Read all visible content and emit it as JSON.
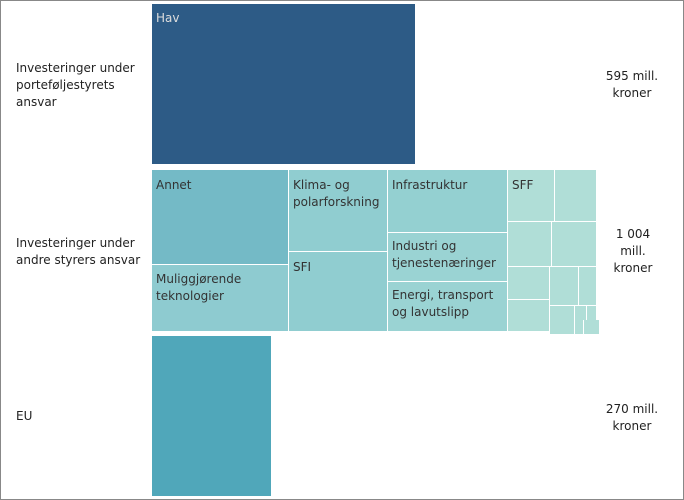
{
  "chart_data": {
    "type": "treemap",
    "rows": [
      {
        "label": "Investeringer under porteføljestyrets ansvar",
        "total": "595 mill. kroner",
        "color": "#2d5b86",
        "cells": [
          "Hav"
        ]
      },
      {
        "label": "Investeringer under andre styrers ansvar",
        "total": "1 004 mill. kroner",
        "cells": [
          "Annet",
          "Muliggjørende teknologier",
          "Klima- og polarforskning",
          "SFI",
          "Infrastruktur",
          "Industri og tjenestenæringer",
          "Energi, transport og lavutslipp",
          "SFF"
        ]
      },
      {
        "label": "EU",
        "total": "270 mill. kroner",
        "color": "#50a7ba",
        "cells": []
      }
    ],
    "labels": {
      "row1": "Investeringer under porteføljestyrets ansvar",
      "row2": "Investeringer under andre styrers ansvar",
      "row3": "EU",
      "total1": "595 mill. kroner",
      "total2": "1 004 mill. kroner",
      "total3": "270 mill. kroner",
      "hav": "Hav",
      "annet": "Annet",
      "muligg": "Muliggjørende teknologier",
      "klima": "Klima- og polarforskning",
      "sfi": "SFI",
      "infra": "Infrastruktur",
      "industri": "Industri og tjenestenæringer",
      "energi": "Energi, transport og lavutslipp",
      "sff": "SFF"
    }
  }
}
